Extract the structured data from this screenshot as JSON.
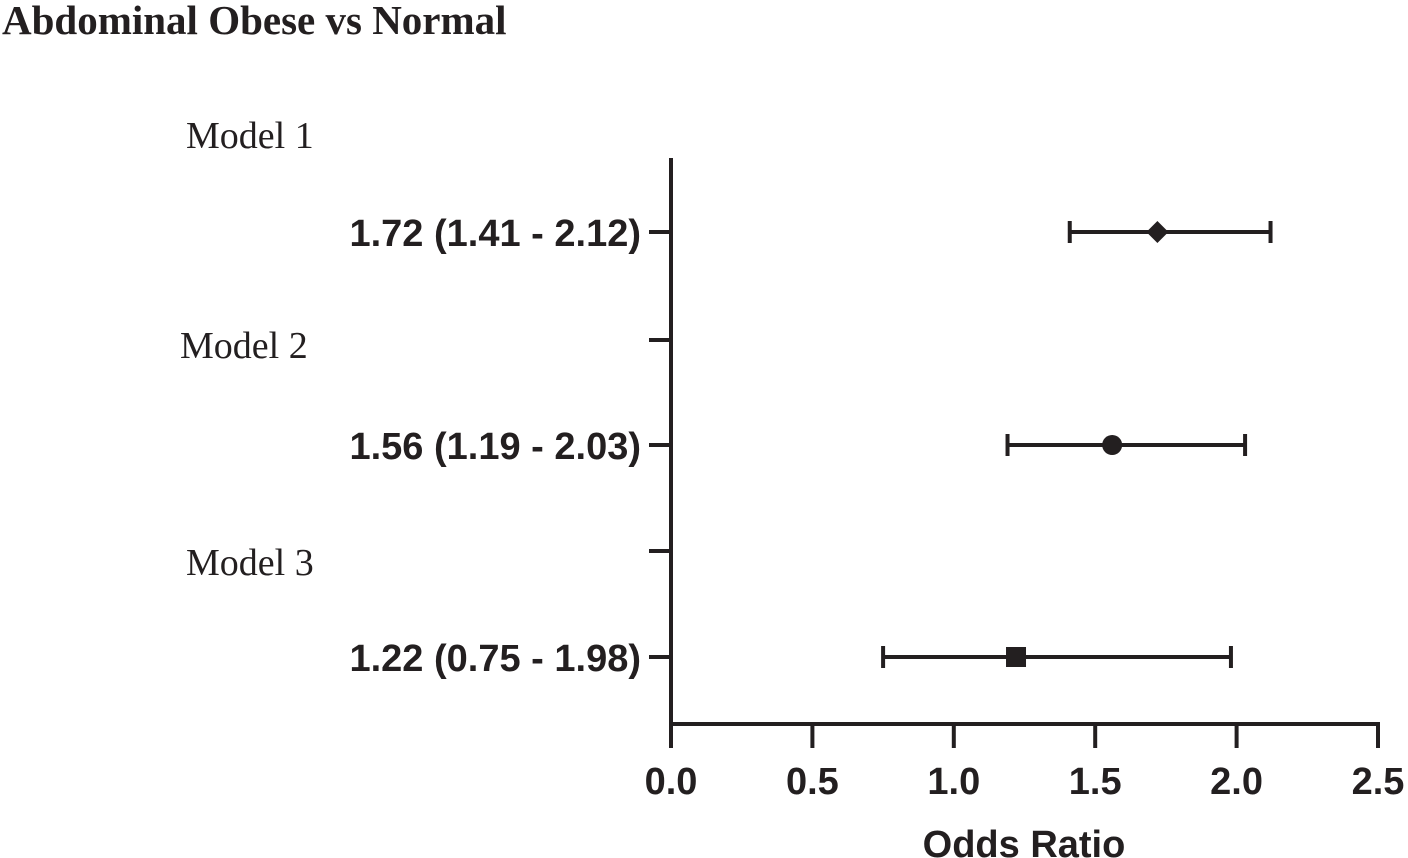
{
  "chart_data": {
    "type": "forest",
    "title": "Abdominal Obese vs Normal",
    "xlabel": "Odds Ratio",
    "xlim": [
      0.0,
      2.5
    ],
    "xticks": [
      "0.0",
      "0.5",
      "1.0",
      "1.5",
      "2.0",
      "2.5"
    ],
    "xtick_values": [
      0.0,
      0.5,
      1.0,
      1.5,
      2.0,
      2.5
    ],
    "rows": [
      {
        "model": "Model 1",
        "label": "1.72 (1.41 - 2.12)",
        "estimate": 1.72,
        "lower": 1.41,
        "upper": 2.12,
        "marker": "diamond"
      },
      {
        "model": "Model 2",
        "label": "1.56 (1.19 - 2.03)",
        "estimate": 1.56,
        "lower": 1.19,
        "upper": 2.03,
        "marker": "circle"
      },
      {
        "model": "Model 3",
        "label": "1.22 (0.75 - 1.98)",
        "estimate": 1.22,
        "lower": 0.75,
        "upper": 1.98,
        "marker": "square"
      }
    ],
    "color": "#231f20"
  }
}
